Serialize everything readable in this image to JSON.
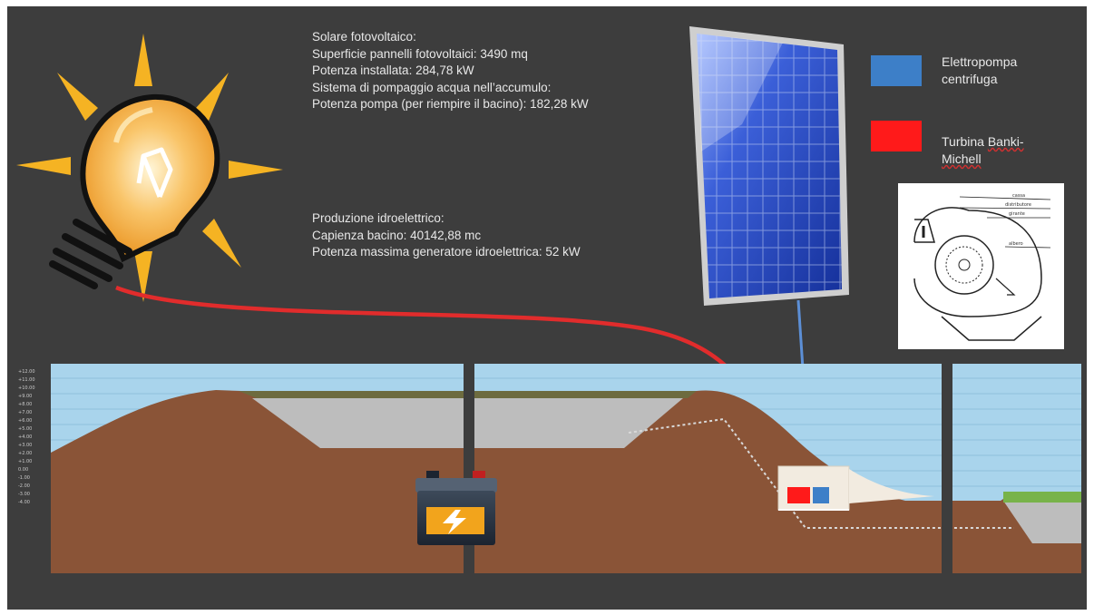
{
  "solar": {
    "title": "Solare  fotovoltaico:",
    "line1": "Superficie pannelli fotovoltaici: 3490 mq",
    "line2": "Potenza installata:  284,78 kW",
    "line3": "Sistema di pompaggio acqua nell’accumulo:",
    "line4": "Potenza pompa (per riempire il bacino): 182,28 kW"
  },
  "hydro": {
    "title": "Produzione  idroelettrico:",
    "line1": "Capienza bacino: 40142,88 mc",
    "line2": "Potenza massima generatore idroelettrica: 52 kW"
  },
  "legend": {
    "pump": {
      "label": "Elettropompa centrifuga",
      "color": "#3d7fc8"
    },
    "turbine": {
      "label_a": "Turbina ",
      "label_b": "Banki-Michell",
      "color": "#ff1a1a"
    }
  },
  "turbine_sketch_labels": [
    "cassa",
    "distributore",
    "girante",
    "albero"
  ],
  "scale_labels": [
    "+12.00",
    "+11.00",
    "+10.00",
    "+9.00",
    "+8.00",
    "+7.00",
    "+6.00",
    "+5.00",
    "+4.00",
    "+3.00",
    "+2.00",
    "+1.00",
    "0.00",
    "-1.00",
    "-2.00",
    "-3.00",
    "-4.00"
  ],
  "colors": {
    "background": "#3d3d3d",
    "sky": "#a9d4ec",
    "earth": "#8a5437",
    "water_dark": "#bdbdbd",
    "wire": "#e12c2c",
    "cable": "#5c8fd6"
  }
}
